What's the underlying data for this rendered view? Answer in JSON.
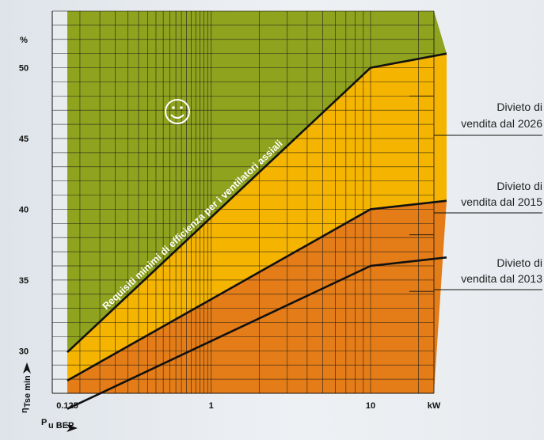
{
  "chart_data": {
    "type": "area",
    "x_scale": "log",
    "xlim": [
      0.1,
      30
    ],
    "ylim": [
      27,
      54
    ],
    "x_ticks": [
      {
        "v": 0.125,
        "label": "0.125"
      },
      {
        "v": 1,
        "label": "1"
      },
      {
        "v": 10,
        "label": "10"
      }
    ],
    "x_unit": "kW",
    "y_ticks": [
      30,
      35,
      40,
      45,
      50
    ],
    "y_unit": "%",
    "x_axis_label": "P",
    "x_axis_label_sub": "u BEP",
    "y_axis_label": "η",
    "y_axis_label_sub": "Tse min",
    "series": [
      {
        "name": "Divieto di vendita dal 2026",
        "color": "#f5b400",
        "points": [
          [
            0.125,
            29.9
          ],
          [
            10,
            50.0
          ],
          [
            30,
            51.0
          ]
        ]
      },
      {
        "name": "Divieto di vendita dal 2015",
        "color": "#e47c18",
        "points": [
          [
            0.125,
            27.9
          ],
          [
            10,
            40.0
          ],
          [
            30,
            40.6
          ]
        ]
      },
      {
        "name": "Divieto di vendita dal 2013",
        "color": "#e47c18",
        "points": [
          [
            0.125,
            25.9
          ],
          [
            10,
            36.0
          ],
          [
            30,
            36.6
          ]
        ]
      }
    ],
    "top_zone_color": "#8fa31f",
    "annotations": [
      {
        "text": "Requisiti minimi di efficienza per i ventilatori assiali",
        "color": "#ffffff"
      },
      {
        "text": "☺",
        "color": "#ffffff"
      }
    ],
    "region_labels": [
      {
        "line1": "Divieto di",
        "line2": "vendita dal 2026"
      },
      {
        "line1": "Divieto di",
        "line2": "vendita dal 2015"
      },
      {
        "line1": "Divieto di",
        "line2": "vendita dal 2013"
      }
    ],
    "grid": true
  }
}
